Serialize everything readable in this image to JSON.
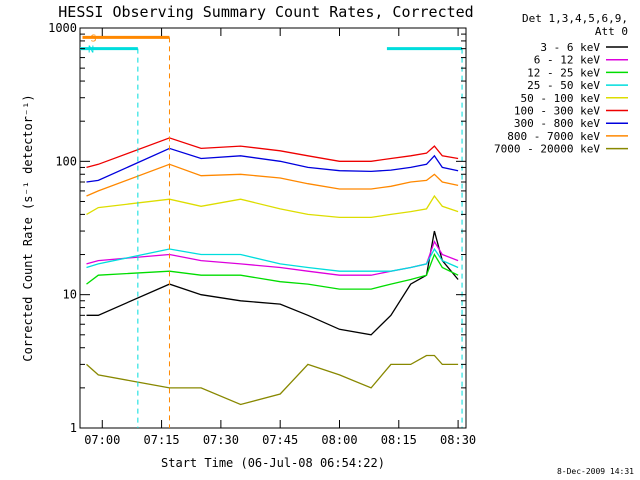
{
  "chart_data": {
    "type": "line",
    "title": "HESSI Observing Summary Count Rates, Corrected",
    "xlabel": "Start Time (06-Jul-08 06:54:22)",
    "ylabel": "Corrected Count Rate (s⁻¹ detector⁻¹)",
    "yscale": "log",
    "ylim": [
      1,
      1000
    ],
    "xlim": [
      "06:54:22",
      "08:32:00"
    ],
    "x_ticks": [
      "07:00",
      "07:15",
      "07:30",
      "07:45",
      "08:00",
      "08:15",
      "08:30"
    ],
    "y_ticks": [
      "1",
      "10",
      "100",
      "1000"
    ],
    "legend_header": [
      "Det 1,3,4,5,6,9,",
      "Att 0"
    ],
    "legend_position": "right",
    "grid": false,
    "series": [
      {
        "name": "3 - 6 keV",
        "color": "#000000",
        "x": [
          "06:56",
          "06:59",
          "07:17",
          "07:25",
          "07:35",
          "07:45",
          "07:52",
          "08:00",
          "08:08",
          "08:13",
          "08:18",
          "08:22",
          "08:24",
          "08:26",
          "08:30"
        ],
        "values": [
          7,
          7,
          12,
          10,
          9,
          8.5,
          7,
          5.5,
          5,
          7,
          12,
          14,
          30,
          18,
          13
        ]
      },
      {
        "name": "6 - 12 keV",
        "color": "#dd00dd",
        "x": [
          "06:56",
          "06:59",
          "07:17",
          "07:25",
          "07:35",
          "07:45",
          "07:52",
          "08:00",
          "08:08",
          "08:13",
          "08:18",
          "08:22",
          "08:24",
          "08:26",
          "08:30"
        ],
        "values": [
          17,
          18,
          20,
          18,
          17,
          16,
          15,
          14,
          14,
          15,
          16,
          17,
          25,
          20,
          18
        ]
      },
      {
        "name": "12 - 25 keV",
        "color": "#00dd00",
        "x": [
          "06:56",
          "06:59",
          "07:17",
          "07:25",
          "07:35",
          "07:45",
          "07:52",
          "08:00",
          "08:08",
          "08:13",
          "08:18",
          "08:22",
          "08:24",
          "08:26",
          "08:30"
        ],
        "values": [
          12,
          14,
          15,
          14,
          14,
          12.5,
          12,
          11,
          11,
          12,
          13,
          14,
          20,
          16,
          14
        ]
      },
      {
        "name": "25 - 50 keV",
        "color": "#00dddd",
        "x": [
          "06:56",
          "06:59",
          "07:17",
          "07:25",
          "07:35",
          "07:45",
          "07:52",
          "08:00",
          "08:08",
          "08:13",
          "08:18",
          "08:22",
          "08:24",
          "08:26",
          "08:30"
        ],
        "values": [
          16,
          17,
          22,
          20,
          20,
          17,
          16,
          15,
          15,
          15,
          16,
          17,
          22,
          18,
          16
        ]
      },
      {
        "name": "50 - 100 keV",
        "color": "#dddd00",
        "x": [
          "06:56",
          "06:59",
          "07:17",
          "07:25",
          "07:35",
          "07:45",
          "07:52",
          "08:00",
          "08:08",
          "08:13",
          "08:18",
          "08:22",
          "08:24",
          "08:26",
          "08:30"
        ],
        "values": [
          40,
          45,
          52,
          46,
          52,
          44,
          40,
          38,
          38,
          40,
          42,
          44,
          55,
          46,
          42
        ]
      },
      {
        "name": "100 - 300 keV",
        "color": "#ee0000",
        "x": [
          "06:56",
          "06:59",
          "07:17",
          "07:25",
          "07:35",
          "07:45",
          "07:52",
          "08:00",
          "08:08",
          "08:13",
          "08:18",
          "08:22",
          "08:24",
          "08:26",
          "08:30"
        ],
        "values": [
          90,
          95,
          150,
          125,
          130,
          120,
          110,
          100,
          100,
          105,
          110,
          115,
          130,
          110,
          105
        ]
      },
      {
        "name": "300 - 800 keV",
        "color": "#0000dd",
        "x": [
          "06:56",
          "06:59",
          "07:17",
          "07:25",
          "07:35",
          "07:45",
          "07:52",
          "08:00",
          "08:08",
          "08:13",
          "08:18",
          "08:22",
          "08:24",
          "08:26",
          "08:30"
        ],
        "values": [
          70,
          72,
          125,
          105,
          110,
          100,
          90,
          85,
          84,
          86,
          90,
          95,
          110,
          90,
          85
        ]
      },
      {
        "name": "800 - 7000 keV",
        "color": "#ff8800",
        "x": [
          "06:56",
          "06:59",
          "07:17",
          "07:25",
          "07:35",
          "07:45",
          "07:52",
          "08:00",
          "08:08",
          "08:13",
          "08:18",
          "08:22",
          "08:24",
          "08:26",
          "08:30"
        ],
        "values": [
          55,
          60,
          95,
          78,
          80,
          75,
          68,
          62,
          62,
          65,
          70,
          72,
          80,
          70,
          66
        ]
      },
      {
        "name": "7000 - 20000 keV",
        "color": "#888800",
        "x": [
          "06:56",
          "06:59",
          "07:17",
          "07:25",
          "07:35",
          "07:45",
          "07:52",
          "08:00",
          "08:08",
          "08:13",
          "08:18",
          "08:22",
          "08:24",
          "08:26",
          "08:30"
        ],
        "values": [
          3,
          2.5,
          2,
          2,
          1.5,
          1.8,
          3,
          2.5,
          2,
          3,
          3,
          3.5,
          3.5,
          3,
          3
        ]
      }
    ],
    "annotations": [
      {
        "text": "S",
        "color": "#ff8800",
        "x_start": "06:55",
        "x_end": "07:17",
        "level": 850
      },
      {
        "text": "N",
        "color": "#00dddd",
        "x_start": "06:54:22",
        "x_end": "07:09",
        "level": 700
      },
      {
        "text": "",
        "color": "#00dddd",
        "x_start": "08:12",
        "x_end": "08:31",
        "level": 700
      }
    ],
    "footer": "8-Dec-2009 14:31"
  }
}
